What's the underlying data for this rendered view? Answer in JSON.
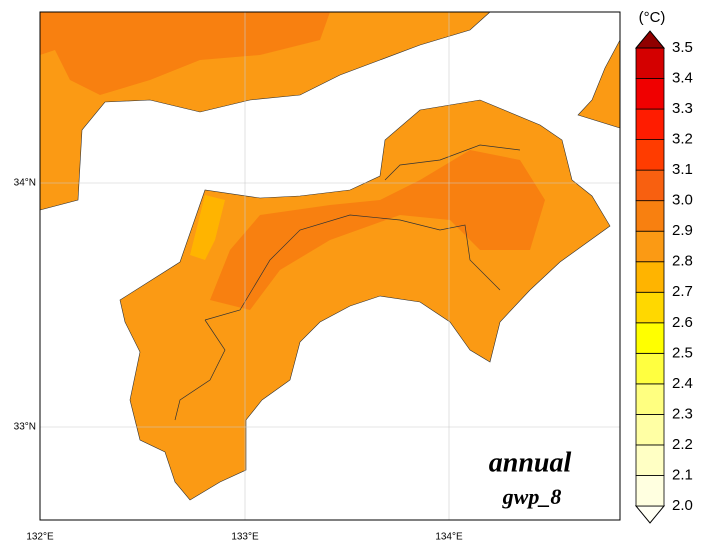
{
  "map": {
    "xticks": [
      "132°E",
      "133°E",
      "134°E"
    ],
    "yticks": [
      "34°N",
      "33°N"
    ],
    "annotation": {
      "season": "annual",
      "model": "gwp_8"
    }
  },
  "colorbar": {
    "unit": "(°C)",
    "labels": [
      "2.0",
      "2.1",
      "2.2",
      "2.3",
      "2.4",
      "2.5",
      "2.6",
      "2.7",
      "2.8",
      "2.9",
      "3.0",
      "3.1",
      "3.2",
      "3.3",
      "3.4",
      "3.5"
    ],
    "colors": [
      "#fffff4",
      "#ffffe0",
      "#ffffc4",
      "#ffffa4",
      "#ffff80",
      "#ffff40",
      "#ffff00",
      "#ffd800",
      "#ffb400",
      "#fb9a14",
      "#f88010",
      "#f86010",
      "#ff3c00",
      "#ff1c00",
      "#f00000",
      "#d40000",
      "#900000"
    ]
  }
}
